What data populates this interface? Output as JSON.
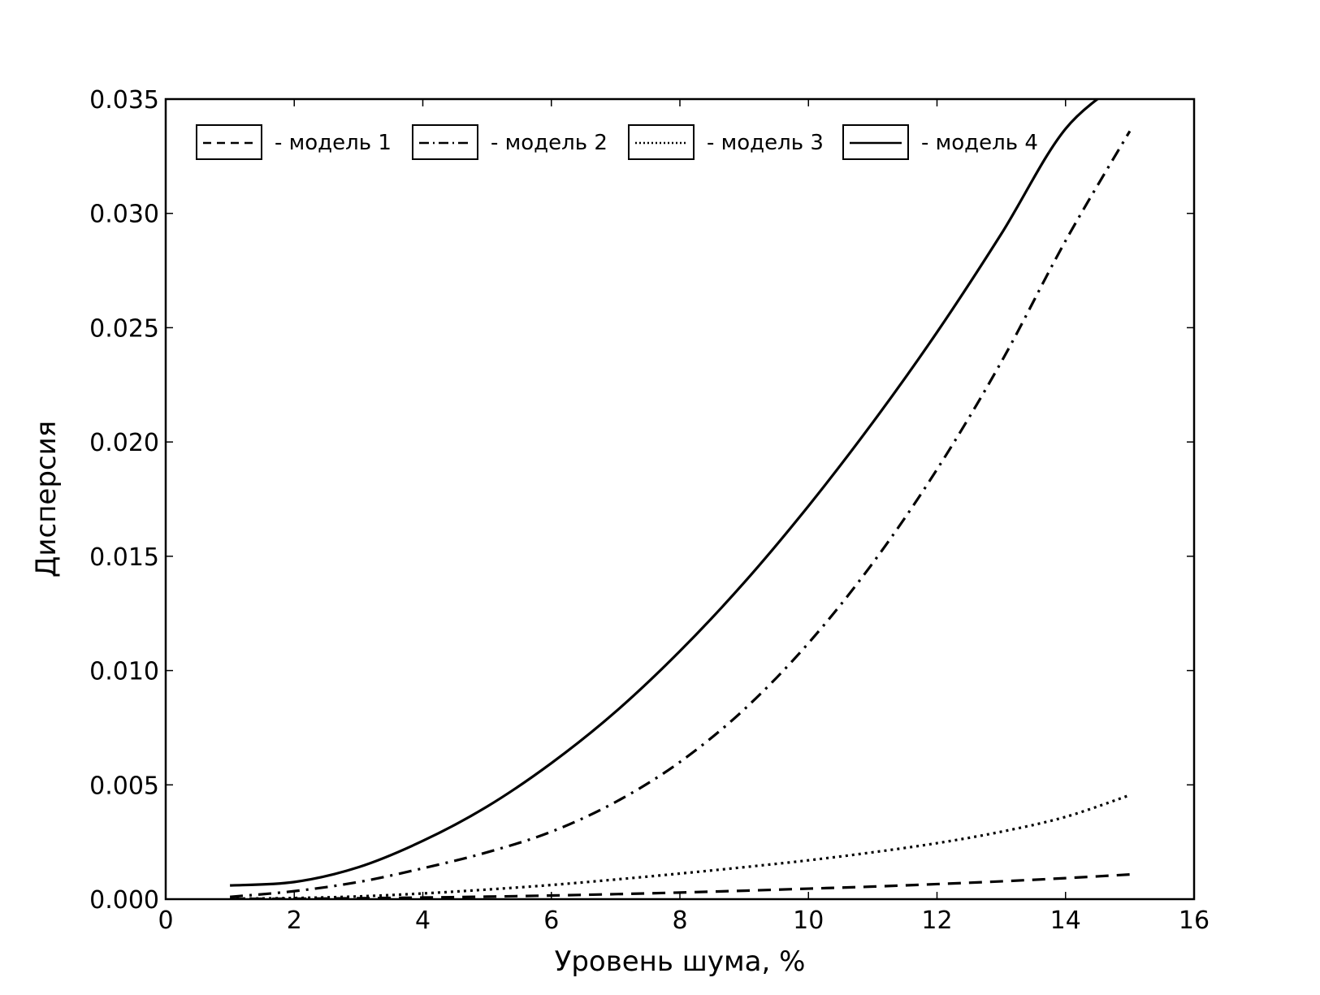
{
  "chart_data": {
    "type": "line",
    "xlabel": "Уровень шума, %",
    "ylabel": "Дисперсия",
    "xlim": [
      0,
      16
    ],
    "ylim": [
      0,
      0.035
    ],
    "xticks": [
      "0",
      "2",
      "4",
      "6",
      "8",
      "10",
      "12",
      "14",
      "16"
    ],
    "yticks": [
      "0.000",
      "0.005",
      "0.010",
      "0.015",
      "0.020",
      "0.025",
      "0.030",
      "0.035"
    ],
    "grid": false,
    "legend_position": "top",
    "x": [
      1,
      2,
      3,
      4,
      5,
      6,
      7,
      8,
      9,
      10,
      11,
      12,
      13,
      14,
      15
    ],
    "series": [
      {
        "name": "- модель 1",
        "linestyle": "dashed",
        "values": [
          1e-05,
          2e-05,
          4e-05,
          7e-05,
          0.00011,
          0.00016,
          0.00022,
          0.00029,
          0.00037,
          0.00046,
          0.00055,
          0.00066,
          0.00078,
          0.00092,
          0.00108
        ]
      },
      {
        "name": "- модель 2",
        "linestyle": "dashdot",
        "values": [
          0.0001,
          0.00035,
          0.00075,
          0.00135,
          0.00205,
          0.00295,
          0.00425,
          0.006,
          0.0083,
          0.0112,
          0.0147,
          0.0188,
          0.0235,
          0.0288,
          0.0336
        ]
      },
      {
        "name": "- модель 3",
        "linestyle": "dotted",
        "values": [
          2e-05,
          5e-05,
          0.00012,
          0.00025,
          0.00042,
          0.00062,
          0.00086,
          0.00112,
          0.0014,
          0.0017,
          0.00205,
          0.00245,
          0.00295,
          0.0036,
          0.00455
        ]
      },
      {
        "name": "- модель 4",
        "linestyle": "solid",
        "values": [
          0.0006,
          0.00075,
          0.0014,
          0.00255,
          0.00405,
          0.00595,
          0.0082,
          0.01085,
          0.01385,
          0.0172,
          0.02085,
          0.0248,
          0.0291,
          0.0337,
          0.036
        ]
      }
    ]
  }
}
